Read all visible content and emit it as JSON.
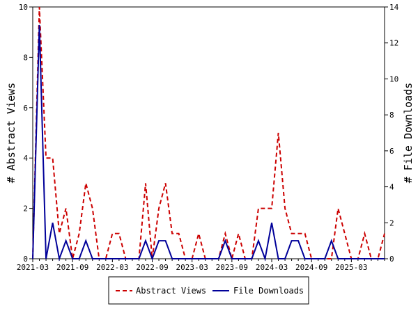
{
  "chart_data": {
    "type": "line",
    "title": "",
    "xlabel": "",
    "ylabel_left": "# Abstract Views",
    "ylabel_right": "# File Downloads",
    "ylim_left": [
      0,
      10
    ],
    "ylim_right": [
      0,
      14
    ],
    "yticks_left": [
      "0",
      "2",
      "4",
      "6",
      "8",
      "10"
    ],
    "yticks_right": [
      "0",
      "2",
      "4",
      "6",
      "8",
      "10",
      "12",
      "14"
    ],
    "x_tick_labels": [
      "2021-03",
      "2021-09",
      "2022-03",
      "2022-09",
      "2023-03",
      "2023-09",
      "2024-03",
      "2024-09",
      "2025-03"
    ],
    "x_start": "2021-03",
    "grid": false,
    "legend_position": "bottom",
    "series": [
      {
        "name": "Abstract Views",
        "axis": "left",
        "color": "#cc0000",
        "style": "dashed",
        "values": [
          0,
          10,
          4,
          4,
          1,
          2,
          0,
          1,
          3,
          2,
          0,
          0,
          1,
          1,
          0,
          0,
          0,
          3,
          0,
          2,
          3,
          1,
          1,
          0,
          0,
          1,
          0,
          0,
          0,
          1,
          0,
          1,
          0,
          0,
          2,
          2,
          2,
          5,
          2,
          1,
          1,
          1,
          0,
          0,
          0,
          0,
          2,
          1,
          0,
          0,
          1,
          0,
          0,
          1
        ]
      },
      {
        "name": "File Downloads",
        "axis": "right",
        "color": "#000099",
        "style": "solid",
        "values": [
          0,
          13,
          0,
          2,
          0,
          1,
          0,
          0,
          1,
          0,
          0,
          0,
          0,
          0,
          0,
          0,
          0,
          1,
          0,
          1,
          1,
          0,
          0,
          0,
          0,
          0,
          0,
          0,
          0,
          1,
          0,
          0,
          0,
          0,
          1,
          0,
          2,
          0,
          0,
          1,
          1,
          0,
          0,
          0,
          0,
          1,
          0,
          0,
          0,
          0,
          0,
          0,
          0,
          0
        ]
      }
    ]
  }
}
